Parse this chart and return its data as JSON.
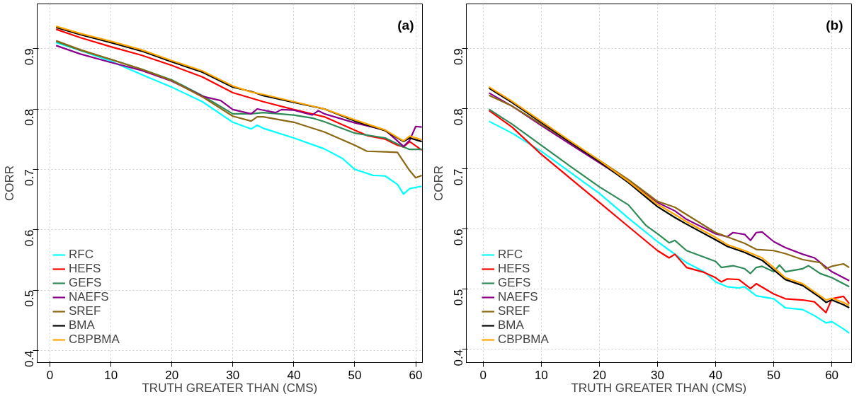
{
  "chart_data": [
    {
      "type": "line",
      "title": "(a)",
      "xlabel": "TRUTH GREATER THAN (CMS)",
      "ylabel": "CORR",
      "xlim": [
        -2.1,
        61.1
      ],
      "ylim": [
        0.38,
        0.974
      ],
      "xticks": [
        0,
        10,
        20,
        30,
        40,
        50,
        60
      ],
      "yticks": [
        0.4,
        0.5,
        0.6,
        0.7,
        0.8,
        0.9
      ],
      "grid": true,
      "legend": "bottom left",
      "line_style": "solid",
      "series": [
        {
          "name": "RFC",
          "color": "#00ffff",
          "x": [
            1,
            5,
            10,
            15,
            20,
            25,
            30,
            33,
            34,
            35,
            40,
            45,
            48,
            50,
            53,
            55,
            57,
            58,
            59,
            61
          ],
          "values": [
            0.91,
            0.897,
            0.879,
            0.857,
            0.836,
            0.812,
            0.778,
            0.767,
            0.773,
            0.768,
            0.752,
            0.734,
            0.718,
            0.7,
            0.69,
            0.689,
            0.675,
            0.659,
            0.668,
            0.672
          ]
        },
        {
          "name": "HEFS",
          "color": "#ff0000",
          "x": [
            1,
            5,
            10,
            15,
            20,
            25,
            30,
            35,
            40,
            45,
            50,
            52,
            55,
            57,
            58,
            59,
            61
          ],
          "values": [
            0.932,
            0.918,
            0.903,
            0.889,
            0.872,
            0.853,
            0.827,
            0.812,
            0.799,
            0.787,
            0.765,
            0.756,
            0.75,
            0.74,
            0.737,
            0.746,
            0.732
          ]
        },
        {
          "name": "GEFS",
          "color": "#2e8b57",
          "x": [
            1,
            5,
            10,
            15,
            20,
            25,
            30,
            33,
            35,
            40,
            43,
            45,
            50,
            55,
            58,
            59,
            61
          ],
          "values": [
            0.912,
            0.897,
            0.882,
            0.866,
            0.848,
            0.822,
            0.792,
            0.792,
            0.794,
            0.79,
            0.785,
            0.779,
            0.76,
            0.752,
            0.737,
            0.733,
            0.733
          ]
        },
        {
          "name": "NAEFS",
          "color": "#8b008b",
          "x": [
            1,
            5,
            10,
            15,
            20,
            25,
            28,
            30,
            33,
            34,
            35,
            37,
            38,
            40,
            43,
            44,
            45,
            50,
            55,
            58,
            59,
            60,
            61
          ],
          "values": [
            0.905,
            0.891,
            0.877,
            0.864,
            0.846,
            0.821,
            0.814,
            0.799,
            0.792,
            0.8,
            0.798,
            0.794,
            0.799,
            0.798,
            0.79,
            0.797,
            0.792,
            0.777,
            0.765,
            0.738,
            0.748,
            0.771,
            0.77
          ]
        },
        {
          "name": "SREF",
          "color": "#8b6914",
          "x": [
            1,
            5,
            10,
            15,
            20,
            25,
            30,
            33,
            34,
            35,
            40,
            45,
            50,
            52,
            55,
            57,
            59,
            60,
            61
          ],
          "values": [
            0.913,
            0.898,
            0.882,
            0.866,
            0.847,
            0.82,
            0.788,
            0.78,
            0.787,
            0.787,
            0.778,
            0.762,
            0.74,
            0.73,
            0.729,
            0.728,
            0.698,
            0.686,
            0.69
          ]
        },
        {
          "name": "BMA",
          "color": "#000000",
          "x": [
            1,
            5,
            10,
            15,
            20,
            25,
            30,
            33,
            35,
            40,
            45,
            50,
            55,
            58,
            59,
            61
          ],
          "values": [
            0.935,
            0.923,
            0.91,
            0.896,
            0.878,
            0.861,
            0.836,
            0.829,
            0.822,
            0.811,
            0.8,
            0.78,
            0.764,
            0.746,
            0.752,
            0.746
          ]
        },
        {
          "name": "CBPBMA",
          "color": "#ffa500",
          "x": [
            1,
            5,
            10,
            15,
            20,
            25,
            30,
            33,
            35,
            40,
            45,
            50,
            55,
            58,
            59,
            61
          ],
          "values": [
            0.937,
            0.925,
            0.912,
            0.898,
            0.88,
            0.863,
            0.838,
            0.828,
            0.824,
            0.812,
            0.8,
            0.782,
            0.765,
            0.747,
            0.755,
            0.749
          ]
        }
      ]
    },
    {
      "type": "line",
      "title": "(b)",
      "xlabel": "TRUTH GREATER THAN (CMS)",
      "ylabel": "CORR",
      "xlim": [
        -2.9,
        63.4
      ],
      "ylim": [
        0.378,
        0.974
      ],
      "xticks": [
        0,
        10,
        20,
        30,
        40,
        50,
        60
      ],
      "yticks": [
        0.4,
        0.5,
        0.6,
        0.7,
        0.8,
        0.9
      ],
      "grid": true,
      "legend": "bottom left",
      "line_style": "solid",
      "series": [
        {
          "name": "RFC",
          "color": "#00ffff",
          "x": [
            1,
            5,
            10,
            15,
            20,
            25,
            30,
            35,
            38,
            40,
            42,
            44,
            45,
            47,
            50,
            52,
            55,
            57,
            59,
            60,
            62,
            63
          ],
          "values": [
            0.779,
            0.759,
            0.729,
            0.694,
            0.659,
            0.618,
            0.579,
            0.544,
            0.529,
            0.512,
            0.504,
            0.502,
            0.504,
            0.489,
            0.484,
            0.469,
            0.466,
            0.456,
            0.444,
            0.446,
            0.434,
            0.427
          ]
        },
        {
          "name": "HEFS",
          "color": "#ff0000",
          "x": [
            1,
            5,
            10,
            15,
            20,
            25,
            30,
            32,
            33,
            35,
            38,
            40,
            41,
            42,
            44,
            46,
            47,
            50,
            52,
            55,
            57,
            59,
            60,
            62,
            63
          ],
          "values": [
            0.797,
            0.769,
            0.724,
            0.684,
            0.644,
            0.604,
            0.564,
            0.552,
            0.558,
            0.536,
            0.528,
            0.519,
            0.512,
            0.517,
            0.516,
            0.501,
            0.509,
            0.492,
            0.484,
            0.482,
            0.479,
            0.461,
            0.484,
            0.488,
            0.476
          ]
        },
        {
          "name": "GEFS",
          "color": "#2e8b57",
          "x": [
            1,
            5,
            10,
            15,
            20,
            25,
            28,
            30,
            32,
            33,
            35,
            40,
            41,
            43,
            45,
            46,
            47,
            48,
            50,
            51,
            52,
            55,
            56,
            58,
            60,
            62,
            63
          ],
          "values": [
            0.799,
            0.774,
            0.739,
            0.704,
            0.67,
            0.64,
            0.606,
            0.592,
            0.577,
            0.581,
            0.564,
            0.546,
            0.536,
            0.539,
            0.534,
            0.526,
            0.536,
            0.538,
            0.529,
            0.54,
            0.529,
            0.534,
            0.539,
            0.526,
            0.519,
            0.509,
            0.504
          ]
        },
        {
          "name": "NAEFS",
          "color": "#8b008b",
          "x": [
            1,
            5,
            10,
            15,
            20,
            25,
            30,
            33,
            35,
            40,
            42,
            43,
            45,
            46,
            47,
            48,
            50,
            52,
            55,
            57,
            60,
            62,
            63
          ],
          "values": [
            0.826,
            0.804,
            0.772,
            0.741,
            0.71,
            0.679,
            0.644,
            0.63,
            0.616,
            0.592,
            0.587,
            0.594,
            0.591,
            0.581,
            0.594,
            0.595,
            0.579,
            0.569,
            0.558,
            0.552,
            0.529,
            0.519,
            0.514
          ]
        },
        {
          "name": "SREF",
          "color": "#8b6914",
          "x": [
            1,
            5,
            10,
            15,
            20,
            25,
            30,
            33,
            35,
            40,
            42,
            45,
            47,
            50,
            52,
            55,
            58,
            59,
            60,
            62,
            63
          ],
          "values": [
            0.822,
            0.804,
            0.774,
            0.744,
            0.714,
            0.682,
            0.646,
            0.636,
            0.624,
            0.594,
            0.587,
            0.576,
            0.566,
            0.564,
            0.559,
            0.549,
            0.544,
            0.534,
            0.538,
            0.542,
            0.536
          ]
        },
        {
          "name": "BMA",
          "color": "#000000",
          "x": [
            1,
            5,
            10,
            15,
            20,
            25,
            30,
            33,
            35,
            40,
            42,
            45,
            48,
            50,
            52,
            55,
            58,
            59,
            60,
            62,
            63
          ],
          "values": [
            0.834,
            0.81,
            0.777,
            0.744,
            0.712,
            0.677,
            0.637,
            0.619,
            0.608,
            0.582,
            0.571,
            0.561,
            0.548,
            0.532,
            0.516,
            0.506,
            0.486,
            0.478,
            0.482,
            0.474,
            0.469
          ]
        },
        {
          "name": "CBPBMA",
          "color": "#ffa500",
          "x": [
            1,
            5,
            10,
            15,
            20,
            25,
            30,
            33,
            35,
            40,
            42,
            45,
            48,
            50,
            52,
            55,
            58,
            59,
            60,
            62,
            63
          ],
          "values": [
            0.836,
            0.812,
            0.779,
            0.746,
            0.714,
            0.679,
            0.641,
            0.624,
            0.612,
            0.586,
            0.574,
            0.564,
            0.552,
            0.536,
            0.519,
            0.509,
            0.489,
            0.482,
            0.485,
            0.478,
            0.473
          ]
        }
      ]
    }
  ]
}
